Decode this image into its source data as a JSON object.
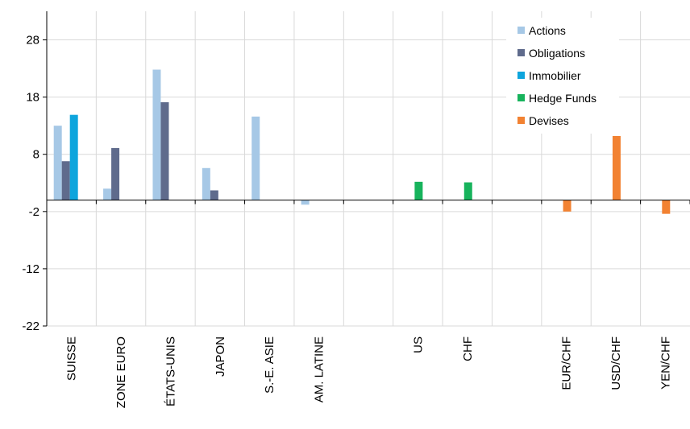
{
  "chart_data": {
    "type": "bar",
    "title": "",
    "xlabel": "",
    "ylabel": "",
    "ylim": [
      -22,
      33
    ],
    "yticks": [
      28,
      18,
      8,
      -2,
      -12,
      -22
    ],
    "grid": true,
    "legend_position": "top-right",
    "categories": [
      "SUISSE",
      "ZONE EURO",
      "ÉTATS-UNIS",
      "JAPON",
      "S.-E. ASIE",
      "AM. LATINE",
      "",
      "US",
      "CHF",
      "",
      "EUR/CHF",
      "USD/CHF",
      "YEN/CHF"
    ],
    "series": [
      {
        "name": "Actions",
        "color": "#a6c8e6",
        "values": [
          13,
          2,
          22.8,
          5.6,
          14.6,
          -0.8,
          null,
          null,
          null,
          null,
          null,
          null,
          null
        ]
      },
      {
        "name": "Obligations",
        "color": "#5f6b8c",
        "values": [
          6.8,
          9.1,
          17.1,
          1.7,
          null,
          null,
          null,
          null,
          null,
          null,
          null,
          null,
          null
        ]
      },
      {
        "name": "Immobilier",
        "color": "#0ea5dd",
        "values": [
          14.9,
          null,
          null,
          null,
          null,
          null,
          null,
          null,
          null,
          null,
          null,
          null,
          null
        ]
      },
      {
        "name": "Hedge Funds",
        "color": "#17b35c",
        "values": [
          null,
          null,
          null,
          null,
          null,
          null,
          null,
          3.2,
          3.1,
          null,
          null,
          null,
          null
        ]
      },
      {
        "name": "Devises",
        "color": "#f28232",
        "values": [
          null,
          null,
          null,
          null,
          null,
          null,
          null,
          null,
          null,
          null,
          -2,
          11.2,
          -2.4
        ]
      }
    ]
  }
}
